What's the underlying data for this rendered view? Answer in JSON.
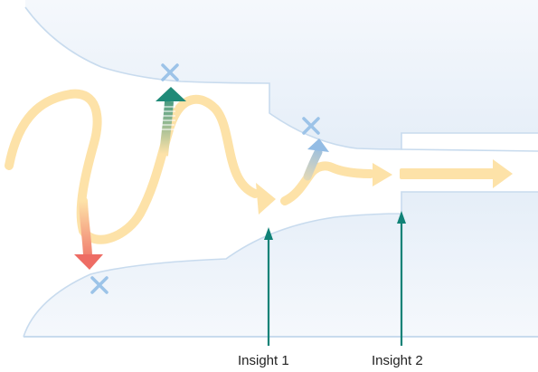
{
  "labels": {
    "insight_1": "Insight 1",
    "insight_2": "Insight 2"
  },
  "colors": {
    "wall_fill": "#e8f0f8",
    "wall_edge": "#c8dbee",
    "path": "#fde2a8",
    "failed_red": "#ee6c64",
    "failed_green": "#1f8a78",
    "failed_blue": "#93bce4",
    "x_marker": "#9cc3e8",
    "insight_arrow": "#118277",
    "label_text": "#222222"
  },
  "icons": [
    "x-mark-icon",
    "arrow-up-icon"
  ]
}
